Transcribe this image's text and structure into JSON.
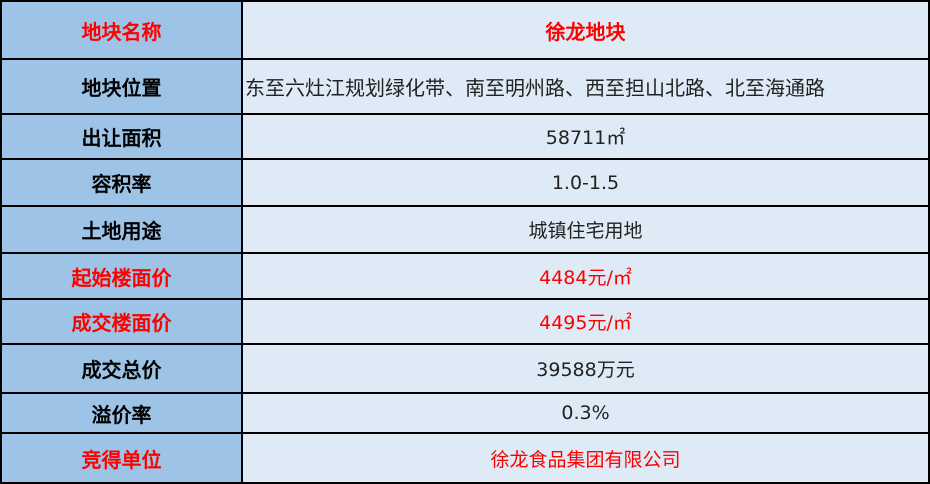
{
  "colors": {
    "label_bg": "#9dc3e6",
    "value_bg": "#deebf7",
    "highlight": "#ff0000"
  },
  "rows": [
    {
      "label": "地块名称",
      "value": "徐龙地块",
      "red": true
    },
    {
      "label": "地块位置",
      "value": "东至六灶江规划绿化带、南至明州路、西至担山北路、北至海通路"
    },
    {
      "label": "出让面积",
      "value": "58711㎡"
    },
    {
      "label": "容积率",
      "value": "1.0-1.5"
    },
    {
      "label": "土地用途",
      "value": "城镇住宅用地"
    },
    {
      "label": "起始楼面价",
      "value": "4484元/㎡",
      "red": true
    },
    {
      "label": "成交楼面价",
      "value": "4495元/㎡",
      "red": true
    },
    {
      "label": "成交总价",
      "value": "39588万元"
    },
    {
      "label": "溢价率",
      "value": "0.3%"
    },
    {
      "label": "竞得单位",
      "value": "徐龙食品集团有限公司",
      "red": true
    }
  ]
}
